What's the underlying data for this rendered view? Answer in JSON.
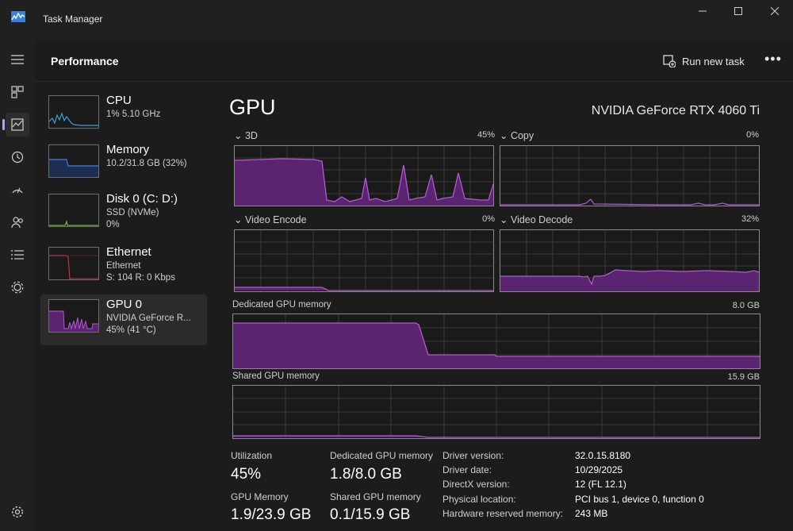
{
  "window": {
    "title": "Task Manager"
  },
  "header": {
    "title": "Performance",
    "run_new_task": "Run new task",
    "more": "•••"
  },
  "devices": [
    {
      "name": "CPU",
      "line1": "1% 5.10 GHz",
      "line2": ""
    },
    {
      "name": "Memory",
      "line1": "10.2/31.8 GB (32%)",
      "line2": ""
    },
    {
      "name": "Disk 0 (C: D:)",
      "line1": "SSD (NVMe)",
      "line2": "0%"
    },
    {
      "name": "Ethernet",
      "line1": "Ethernet",
      "line2": "S: 104 R: 0 Kbps"
    },
    {
      "name": "GPU 0",
      "line1": "NVIDIA GeForce R...",
      "line2": "45% (41 °C)"
    }
  ],
  "gpu": {
    "title": "GPU",
    "model": "NVIDIA GeForce RTX 4060 Ti",
    "engines": [
      {
        "label": "3D",
        "value": "45%"
      },
      {
        "label": "Copy",
        "value": "0%"
      },
      {
        "label": "Video Encode",
        "value": "0%"
      },
      {
        "label": "Video Decode",
        "value": "32%"
      }
    ],
    "dedicated_label": "Dedicated GPU memory",
    "dedicated_max": "8.0 GB",
    "shared_label": "Shared GPU memory",
    "shared_max": "15.9 GB"
  },
  "stats": {
    "utilization_label": "Utilization",
    "utilization": "45%",
    "dedicated_label": "Dedicated GPU memory",
    "dedicated": "1.8/8.0 GB",
    "gpu_memory_label": "GPU Memory",
    "gpu_memory": "1.9/23.9 GB",
    "shared_label": "Shared GPU memory",
    "shared": "0.1/15.9 GB"
  },
  "details": [
    {
      "key": "Driver version:",
      "value": "32.0.15.8180"
    },
    {
      "key": "Driver date:",
      "value": "10/29/2025"
    },
    {
      "key": "DirectX version:",
      "value": "12 (FL 12.1)"
    },
    {
      "key": "Physical location:",
      "value": "PCI bus 1, device 0, function 0"
    },
    {
      "key": "Hardware reserved memory:",
      "value": "243 MB"
    }
  ],
  "colors": {
    "accent": "#a8a8ff",
    "gpu_line": "#9a3fb8",
    "gpu_fill": "#5a2470",
    "cpu_line": "#3aa0d6",
    "mem_line": "#3d6ec7",
    "eth_line": "#b03a48"
  },
  "icons": {
    "rail": [
      "hamburger-icon",
      "processes-icon",
      "performance-icon",
      "app-history-icon",
      "startup-apps-icon",
      "users-icon",
      "details-icon",
      "services-icon",
      "settings-icon"
    ]
  }
}
